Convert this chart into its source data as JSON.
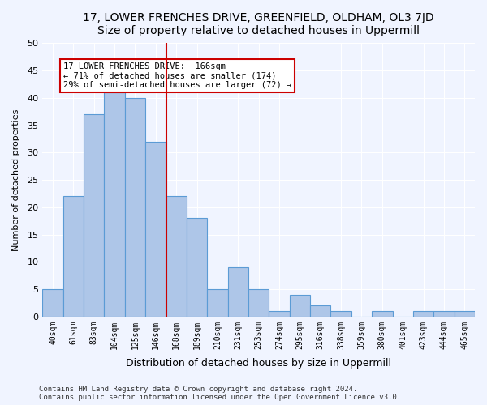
{
  "title": "17, LOWER FRENCHES DRIVE, GREENFIELD, OLDHAM, OL3 7JD",
  "subtitle": "Size of property relative to detached houses in Uppermill",
  "xlabel": "Distribution of detached houses by size in Uppermill",
  "ylabel": "Number of detached properties",
  "bar_labels": [
    "40sqm",
    "61sqm",
    "83sqm",
    "104sqm",
    "125sqm",
    "146sqm",
    "168sqm",
    "189sqm",
    "210sqm",
    "231sqm",
    "253sqm",
    "274sqm",
    "295sqm",
    "316sqm",
    "338sqm",
    "359sqm",
    "380sqm",
    "401sqm",
    "423sqm",
    "444sqm",
    "465sqm"
  ],
  "bar_values": [
    5,
    22,
    37,
    41,
    40,
    32,
    22,
    18,
    5,
    9,
    5,
    1,
    4,
    2,
    1,
    0,
    1,
    0,
    1,
    1,
    1
  ],
  "bar_color": "#AEC6E8",
  "bar_edge_color": "#5B9BD5",
  "property_line_x": 6,
  "property_line_label": "17 LOWER FRENCHES DRIVE:  166sqm",
  "annotation_line1": "← 71% of detached houses are smaller (174)",
  "annotation_line2": "29% of semi-detached houses are larger (72) →",
  "annotation_box_color": "#ffffff",
  "annotation_box_edge_color": "#cc0000",
  "vline_color": "#cc0000",
  "ylim": [
    0,
    50
  ],
  "yticks": [
    0,
    5,
    10,
    15,
    20,
    25,
    30,
    35,
    40,
    45,
    50
  ],
  "footer_line1": "Contains HM Land Registry data © Crown copyright and database right 2024.",
  "footer_line2": "Contains public sector information licensed under the Open Government Licence v3.0.",
  "bg_color": "#f0f4ff",
  "plot_bg_color": "#f0f4ff"
}
